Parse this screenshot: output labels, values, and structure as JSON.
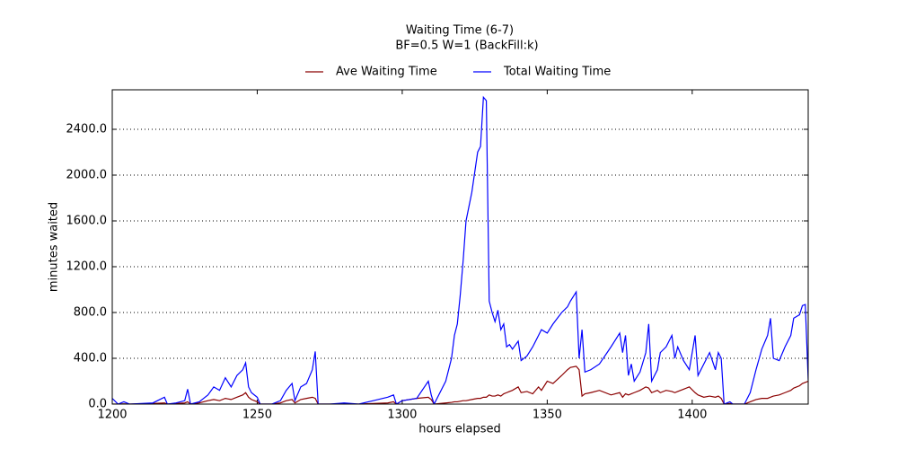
{
  "chart_data": {
    "type": "line",
    "title": "Waiting Time (6-7)",
    "subtitle": "BF=0.5   W=1   (BackFill:k)",
    "xlabel": "hours elapsed",
    "ylabel": "minutes waited",
    "grid": true,
    "xlim": [
      1200,
      1440
    ],
    "ylim": [
      0,
      2745
    ],
    "xticks": [
      1200,
      1250,
      1300,
      1350,
      1400
    ],
    "yticks": [
      {
        "value": 0,
        "label": "0.0"
      },
      {
        "value": 400,
        "label": "400.0"
      },
      {
        "value": 800,
        "label": "800.0"
      },
      {
        "value": 1200,
        "label": "1200.0"
      },
      {
        "value": 1600,
        "label": "1600.0"
      },
      {
        "value": 2000,
        "label": "2000.0"
      },
      {
        "value": 2400,
        "label": "2400.0"
      }
    ],
    "x": [
      1200,
      1202,
      1204,
      1206,
      1210,
      1214,
      1218,
      1219,
      1222,
      1225,
      1226,
      1227,
      1230,
      1233,
      1235,
      1237,
      1239,
      1241,
      1243,
      1245,
      1246,
      1247,
      1248,
      1250,
      1251,
      1255,
      1258,
      1260,
      1262,
      1263,
      1265,
      1267,
      1269,
      1270,
      1271,
      1275,
      1280,
      1285,
      1290,
      1295,
      1297,
      1298,
      1300,
      1305,
      1309,
      1310,
      1311,
      1315,
      1317,
      1318,
      1319,
      1320,
      1321,
      1322,
      1324,
      1326,
      1327,
      1328,
      1329,
      1330,
      1331,
      1332,
      1333,
      1334,
      1335,
      1336,
      1337,
      1338,
      1340,
      1341,
      1343,
      1345,
      1347,
      1348,
      1350,
      1352,
      1355,
      1357,
      1358,
      1360,
      1361,
      1362,
      1363,
      1365,
      1368,
      1372,
      1375,
      1376,
      1377,
      1378,
      1379,
      1380,
      1382,
      1384,
      1385,
      1386,
      1388,
      1389,
      1391,
      1393,
      1394,
      1395,
      1397,
      1399,
      1401,
      1402,
      1404,
      1406,
      1408,
      1409,
      1410,
      1411,
      1413,
      1414,
      1418,
      1420,
      1422,
      1424,
      1426,
      1427,
      1428,
      1430,
      1432,
      1434,
      1435,
      1437,
      1438,
      1439,
      1440
    ],
    "series": [
      {
        "name": "Ave Waiting Time",
        "color": "#8b0000",
        "values": [
          0,
          0,
          2,
          0,
          2,
          5,
          10,
          0,
          5,
          10,
          20,
          0,
          10,
          30,
          40,
          30,
          50,
          40,
          60,
          80,
          100,
          60,
          40,
          20,
          0,
          0,
          10,
          30,
          40,
          10,
          40,
          50,
          60,
          50,
          0,
          0,
          0,
          0,
          5,
          10,
          20,
          0,
          30,
          50,
          60,
          40,
          0,
          10,
          15,
          20,
          20,
          25,
          30,
          30,
          40,
          50,
          50,
          60,
          60,
          80,
          70,
          70,
          80,
          70,
          90,
          100,
          110,
          120,
          150,
          100,
          110,
          90,
          150,
          120,
          200,
          180,
          250,
          300,
          320,
          330,
          300,
          70,
          90,
          100,
          120,
          80,
          100,
          60,
          90,
          80,
          90,
          100,
          120,
          150,
          140,
          100,
          120,
          100,
          120,
          110,
          100,
          110,
          130,
          150,
          100,
          80,
          60,
          70,
          60,
          70,
          50,
          0,
          5,
          0,
          0,
          20,
          40,
          50,
          50,
          60,
          70,
          80,
          100,
          120,
          140,
          160,
          180,
          190,
          200
        ]
      },
      {
        "name": "Total Waiting Time",
        "color": "#0000ff",
        "values": [
          50,
          0,
          20,
          0,
          5,
          10,
          60,
          0,
          10,
          30,
          130,
          0,
          20,
          80,
          150,
          120,
          230,
          150,
          250,
          300,
          360,
          150,
          100,
          60,
          0,
          0,
          30,
          120,
          180,
          30,
          150,
          180,
          300,
          460,
          0,
          0,
          10,
          0,
          30,
          60,
          80,
          0,
          30,
          50,
          200,
          80,
          0,
          200,
          400,
          600,
          700,
          950,
          1250,
          1600,
          1850,
          2200,
          2250,
          2680,
          2650,
          900,
          800,
          720,
          820,
          650,
          700,
          500,
          520,
          480,
          550,
          380,
          420,
          500,
          600,
          650,
          620,
          700,
          800,
          850,
          900,
          980,
          400,
          650,
          280,
          300,
          350,
          500,
          620,
          450,
          600,
          250,
          350,
          200,
          280,
          450,
          700,
          200,
          300,
          450,
          500,
          600,
          400,
          500,
          380,
          300,
          600,
          250,
          350,
          450,
          300,
          450,
          400,
          0,
          20,
          0,
          0,
          100,
          300,
          480,
          600,
          750,
          400,
          380,
          500,
          600,
          750,
          780,
          860,
          870,
          210
        ]
      }
    ]
  }
}
